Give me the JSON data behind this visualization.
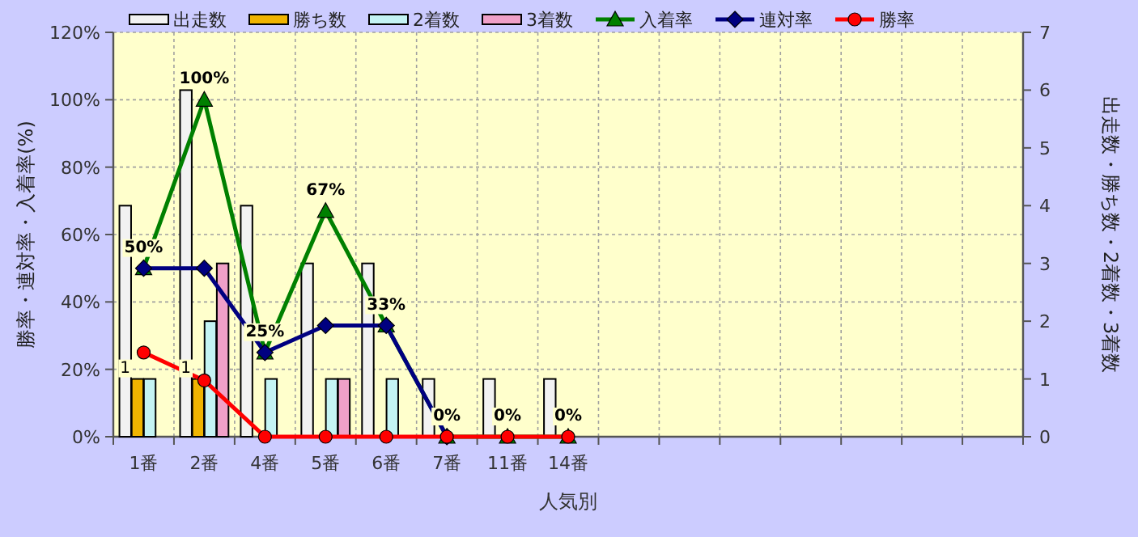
{
  "chart_data": {
    "type": "bar",
    "xlabel": "人気別",
    "ylabel": "勝率・連対率・入着率(%)",
    "y2label": "出走数・勝ち数・2着数・3着数",
    "categories": [
      "1番",
      "2番",
      "4番",
      "5番",
      "6番",
      "7番",
      "11番",
      "14番",
      null,
      null,
      null,
      null,
      null,
      null,
      null
    ],
    "series": [
      {
        "name": "出走数",
        "axis": "y2",
        "color": "#f2f2f2",
        "values": [
          4,
          6,
          4,
          3,
          3,
          1,
          1,
          1,
          null,
          null,
          null,
          null,
          null,
          null,
          null
        ]
      },
      {
        "name": "勝ち数",
        "axis": "y2",
        "color": "#f0b400",
        "values": [
          1,
          1,
          0,
          0,
          0,
          0,
          0,
          0,
          null,
          null,
          null,
          null,
          null,
          null,
          null
        ],
        "value_labels": [
          "1",
          "1",
          null,
          null,
          null,
          null,
          null,
          null,
          null,
          null,
          null,
          null,
          null,
          null,
          null
        ]
      },
      {
        "name": "2着数",
        "axis": "y2",
        "color": "#c4f4f4",
        "values": [
          1,
          2,
          1,
          1,
          1,
          0,
          0,
          0,
          null,
          null,
          null,
          null,
          null,
          null,
          null
        ]
      },
      {
        "name": "3着数",
        "axis": "y2",
        "color": "#f0a0c8",
        "values": [
          0,
          3,
          0,
          1,
          0,
          0,
          0,
          0,
          null,
          null,
          null,
          null,
          null,
          null,
          null
        ]
      },
      {
        "name": "入着率",
        "type": "line",
        "color": "#008000",
        "marker": "triangle",
        "values": [
          50,
          100,
          25,
          67,
          33,
          0,
          0,
          0,
          null,
          null,
          null,
          null,
          null,
          null,
          null
        ],
        "value_labels": [
          "50%",
          "100%",
          "25%",
          "67%",
          "33%",
          "0%",
          "0%",
          "0%",
          null,
          null,
          null,
          null,
          null,
          null,
          null
        ]
      },
      {
        "name": "連対率",
        "type": "line",
        "color": "#000080",
        "marker": "diamond",
        "values": [
          50,
          50,
          25,
          33,
          33,
          0,
          null,
          null,
          null,
          null,
          null,
          null,
          null,
          null,
          null
        ]
      },
      {
        "name": "勝率",
        "type": "line",
        "color": "#ff0000",
        "marker": "circle",
        "values": [
          25,
          16.7,
          0,
          0,
          0,
          0,
          0,
          0,
          null,
          null,
          null,
          null,
          null,
          null,
          null
        ]
      }
    ],
    "ylim": [
      0,
      120
    ],
    "yticks": [
      {
        "value": 0,
        "label": "0%"
      },
      {
        "value": 20,
        "label": "20%"
      },
      {
        "value": 40,
        "label": "40%"
      },
      {
        "value": 60,
        "label": "60%"
      },
      {
        "value": 80,
        "label": "80%"
      },
      {
        "value": 100,
        "label": "100%"
      },
      {
        "value": 120,
        "label": "120%"
      }
    ],
    "y2lim": [
      0,
      7
    ],
    "y2ticks": [
      0,
      1,
      2,
      3,
      4,
      5,
      6,
      7
    ],
    "grid": true,
    "legend": "top"
  }
}
